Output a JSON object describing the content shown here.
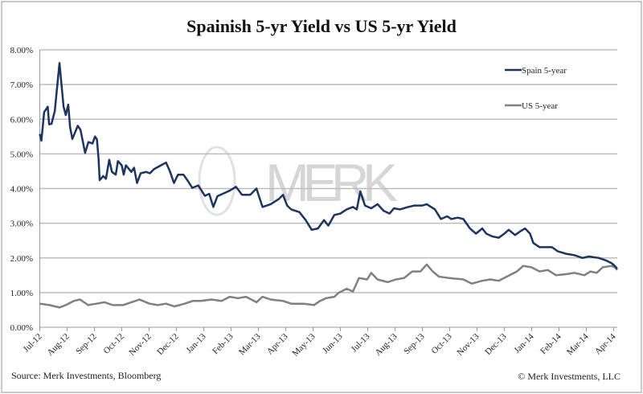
{
  "chart_data": {
    "type": "line",
    "title": "Spainish 5-yr Yield vs US 5-yr Yield",
    "xlabel": "",
    "ylabel": "",
    "x_unit": "months since Jul-12",
    "ylim": [
      0,
      8
    ],
    "yticks": [
      "0.00%",
      "1.00%",
      "2.00%",
      "3.00%",
      "4.00%",
      "5.00%",
      "6.00%",
      "7.00%",
      "8.00%"
    ],
    "xticks": [
      "Jul-12",
      "Aug-12",
      "Sep-12",
      "Oct-12",
      "Nov-12",
      "Dec-12",
      "Jan-13",
      "Feb-13",
      "Mar-13",
      "Apr-13",
      "May-13",
      "Jun-13",
      "Jul-13",
      "Aug-13",
      "Sep-13",
      "Oct-13",
      "Nov-13",
      "Dec-13",
      "Jan-14",
      "Feb-14",
      "Mar-14",
      "Apr-14"
    ],
    "grid": true,
    "legend_position": "top-right",
    "watermark": "MERK",
    "source": "Source: Merk Investments, Bloomberg",
    "copyright": "© Merk Investments, LLC",
    "series": [
      {
        "name": "Spain 5-year",
        "color": "#1c3560",
        "points": [
          [
            0,
            5.57
          ],
          [
            0.06,
            5.38
          ],
          [
            0.16,
            6.2
          ],
          [
            0.29,
            6.36
          ],
          [
            0.34,
            5.85
          ],
          [
            0.43,
            5.87
          ],
          [
            0.55,
            6.24
          ],
          [
            0.72,
            7.62
          ],
          [
            0.87,
            6.36
          ],
          [
            0.95,
            6.12
          ],
          [
            1.04,
            6.42
          ],
          [
            1.11,
            5.77
          ],
          [
            1.19,
            5.43
          ],
          [
            1.39,
            5.81
          ],
          [
            1.49,
            5.69
          ],
          [
            1.58,
            5.34
          ],
          [
            1.66,
            5.03
          ],
          [
            1.78,
            5.34
          ],
          [
            1.93,
            5.3
          ],
          [
            2.02,
            5.5
          ],
          [
            2.09,
            5.42
          ],
          [
            2.15,
            4.87
          ],
          [
            2.19,
            4.24
          ],
          [
            2.32,
            4.36
          ],
          [
            2.42,
            4.28
          ],
          [
            2.54,
            4.83
          ],
          [
            2.64,
            4.48
          ],
          [
            2.78,
            4.4
          ],
          [
            2.86,
            4.79
          ],
          [
            3.0,
            4.67
          ],
          [
            3.07,
            4.4
          ],
          [
            3.15,
            4.67
          ],
          [
            3.35,
            4.48
          ],
          [
            3.45,
            4.6
          ],
          [
            3.56,
            4.16
          ],
          [
            3.69,
            4.44
          ],
          [
            3.89,
            4.48
          ],
          [
            4.03,
            4.44
          ],
          [
            4.18,
            4.56
          ],
          [
            4.43,
            4.67
          ],
          [
            4.62,
            4.75
          ],
          [
            4.77,
            4.48
          ],
          [
            4.91,
            4.16
          ],
          [
            5.06,
            4.4
          ],
          [
            5.26,
            4.4
          ],
          [
            5.4,
            4.24
          ],
          [
            5.58,
            4.02
          ],
          [
            5.8,
            4.09
          ],
          [
            6.04,
            3.79
          ],
          [
            6.2,
            3.85
          ],
          [
            6.35,
            3.47
          ],
          [
            6.5,
            3.78
          ],
          [
            6.95,
            3.94
          ],
          [
            7.18,
            4.05
          ],
          [
            7.4,
            3.82
          ],
          [
            7.7,
            3.82
          ],
          [
            7.93,
            4.0
          ],
          [
            8.15,
            3.47
          ],
          [
            8.45,
            3.55
          ],
          [
            8.75,
            3.7
          ],
          [
            8.9,
            3.82
          ],
          [
            9.05,
            3.51
          ],
          [
            9.2,
            3.4
          ],
          [
            9.5,
            3.32
          ],
          [
            9.73,
            3.09
          ],
          [
            9.95,
            2.81
          ],
          [
            10.18,
            2.85
          ],
          [
            10.4,
            3.09
          ],
          [
            10.56,
            2.93
          ],
          [
            10.78,
            3.24
          ],
          [
            11.0,
            3.28
          ],
          [
            11.23,
            3.4
          ],
          [
            11.46,
            3.47
          ],
          [
            11.6,
            3.4
          ],
          [
            11.73,
            3.92
          ],
          [
            11.9,
            3.51
          ],
          [
            12.13,
            3.43
          ],
          [
            12.36,
            3.55
          ],
          [
            12.58,
            3.36
          ],
          [
            12.8,
            3.28
          ],
          [
            12.96,
            3.43
          ],
          [
            13.18,
            3.4
          ],
          [
            13.48,
            3.47
          ],
          [
            13.71,
            3.51
          ],
          [
            14.0,
            3.51
          ],
          [
            14.16,
            3.55
          ],
          [
            14.46,
            3.4
          ],
          [
            14.68,
            3.12
          ],
          [
            14.91,
            3.2
          ],
          [
            15.06,
            3.12
          ],
          [
            15.29,
            3.16
          ],
          [
            15.5,
            3.12
          ],
          [
            15.74,
            2.85
          ],
          [
            15.96,
            2.7
          ],
          [
            16.19,
            2.85
          ],
          [
            16.34,
            2.7
          ],
          [
            16.56,
            2.62
          ],
          [
            16.79,
            2.58
          ],
          [
            17.0,
            2.7
          ],
          [
            17.16,
            2.81
          ],
          [
            17.39,
            2.66
          ],
          [
            17.61,
            2.78
          ],
          [
            17.76,
            2.85
          ],
          [
            17.94,
            2.7
          ],
          [
            18.06,
            2.43
          ],
          [
            18.29,
            2.31
          ],
          [
            18.5,
            2.31
          ],
          [
            18.74,
            2.31
          ],
          [
            18.96,
            2.19
          ],
          [
            19.26,
            2.12
          ],
          [
            19.56,
            2.08
          ],
          [
            19.86,
            2.0
          ],
          [
            20.09,
            2.04
          ],
          [
            20.46,
            2.0
          ],
          [
            20.74,
            1.92
          ],
          [
            20.92,
            1.85
          ],
          [
            21.0,
            1.8
          ],
          [
            21.13,
            1.69
          ]
        ]
      },
      {
        "name": "US 5-year",
        "color": "#808080",
        "points": [
          [
            0,
            0.68
          ],
          [
            0.35,
            0.64
          ],
          [
            0.72,
            0.57
          ],
          [
            0.95,
            0.64
          ],
          [
            1.25,
            0.76
          ],
          [
            1.47,
            0.8
          ],
          [
            1.77,
            0.64
          ],
          [
            2.07,
            0.68
          ],
          [
            2.37,
            0.72
          ],
          [
            2.67,
            0.64
          ],
          [
            3.05,
            0.64
          ],
          [
            3.35,
            0.72
          ],
          [
            3.65,
            0.8
          ],
          [
            4.02,
            0.68
          ],
          [
            4.32,
            0.64
          ],
          [
            4.62,
            0.68
          ],
          [
            4.92,
            0.6
          ],
          [
            5.3,
            0.68
          ],
          [
            5.6,
            0.76
          ],
          [
            5.9,
            0.76
          ],
          [
            6.28,
            0.8
          ],
          [
            6.65,
            0.76
          ],
          [
            6.95,
            0.88
          ],
          [
            7.25,
            0.84
          ],
          [
            7.55,
            0.88
          ],
          [
            7.93,
            0.72
          ],
          [
            8.15,
            0.88
          ],
          [
            8.45,
            0.8
          ],
          [
            8.9,
            0.76
          ],
          [
            9.2,
            0.68
          ],
          [
            9.65,
            0.68
          ],
          [
            10.03,
            0.64
          ],
          [
            10.26,
            0.76
          ],
          [
            10.48,
            0.84
          ],
          [
            10.78,
            0.88
          ],
          [
            10.93,
            0.99
          ],
          [
            11.23,
            1.11
          ],
          [
            11.46,
            1.03
          ],
          [
            11.68,
            1.42
          ],
          [
            11.98,
            1.38
          ],
          [
            12.13,
            1.57
          ],
          [
            12.36,
            1.38
          ],
          [
            12.73,
            1.3
          ],
          [
            13.03,
            1.38
          ],
          [
            13.33,
            1.42
          ],
          [
            13.63,
            1.61
          ],
          [
            13.93,
            1.61
          ],
          [
            14.16,
            1.81
          ],
          [
            14.38,
            1.61
          ],
          [
            14.61,
            1.46
          ],
          [
            14.98,
            1.42
          ],
          [
            15.5,
            1.38
          ],
          [
            15.81,
            1.26
          ],
          [
            16.19,
            1.34
          ],
          [
            16.49,
            1.38
          ],
          [
            16.79,
            1.34
          ],
          [
            17.09,
            1.46
          ],
          [
            17.46,
            1.61
          ],
          [
            17.69,
            1.77
          ],
          [
            17.99,
            1.73
          ],
          [
            18.29,
            1.61
          ],
          [
            18.59,
            1.65
          ],
          [
            18.89,
            1.5
          ],
          [
            19.26,
            1.53
          ],
          [
            19.56,
            1.57
          ],
          [
            19.93,
            1.5
          ],
          [
            20.15,
            1.61
          ],
          [
            20.38,
            1.57
          ],
          [
            20.6,
            1.73
          ],
          [
            20.92,
            1.77
          ],
          [
            21.05,
            1.73
          ],
          [
            21.13,
            1.65
          ]
        ]
      }
    ]
  }
}
